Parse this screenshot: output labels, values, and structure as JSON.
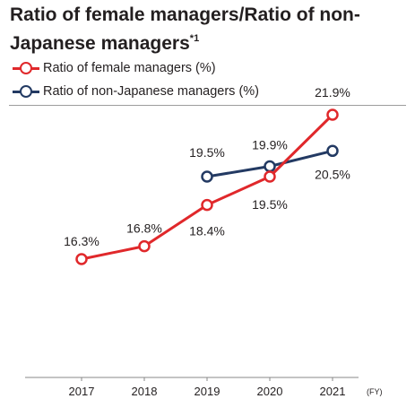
{
  "title": {
    "main": "Ratio of female managers/Ratio of non-Japanese managers",
    "footnote_mark": "*1"
  },
  "colors": {
    "female": "#e0282b",
    "non_japanese": "#233a63",
    "axis": "#888888",
    "text": "#231f20"
  },
  "chart_data": {
    "type": "line",
    "categories": [
      "2017",
      "2018",
      "2019",
      "2020",
      "2021"
    ],
    "x_unit": "(FY)",
    "series": [
      {
        "name": "Ratio of female managers (%)",
        "color": "#e0282b",
        "values": [
          16.3,
          16.8,
          18.4,
          19.5,
          21.9
        ],
        "labels": [
          "16.3%",
          "16.8%",
          "18.4%",
          "19.5%",
          "21.9%"
        ]
      },
      {
        "name": "Ratio of non-Japanese managers (%)",
        "color": "#233a63",
        "values": [
          null,
          null,
          19.5,
          19.9,
          20.5
        ],
        "labels": [
          null,
          null,
          "19.5%",
          "19.9%",
          "20.5%"
        ]
      }
    ],
    "legend": "top-left",
    "grid": false,
    "ylim": [
      14,
      23
    ]
  }
}
